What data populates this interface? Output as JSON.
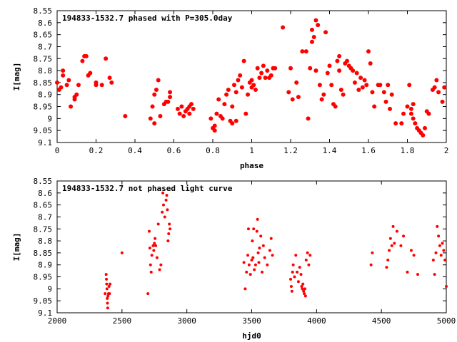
{
  "chart_data": [
    {
      "type": "scatter",
      "title": "194833-1532.7 phased with P=305.0day",
      "xlabel": "phase",
      "ylabel": "I[mag]",
      "xlim": [
        0,
        2
      ],
      "ylim": [
        8.55,
        9.1
      ],
      "y_inverted": true,
      "x_ticks": [
        0,
        0.2,
        0.4,
        0.6,
        0.8,
        1,
        1.2,
        1.4,
        1.6,
        1.8,
        2
      ],
      "x_tick_labels": [
        "0",
        "0.2",
        "0.4",
        "0.6",
        "0.8",
        "1",
        "1.2",
        "1.4",
        "1.6",
        "1.8",
        "2"
      ],
      "y_ticks": [
        8.55,
        8.6,
        8.65,
        8.7,
        8.75,
        8.8,
        8.85,
        8.9,
        8.95,
        9,
        9.05,
        9.1
      ],
      "y_tick_labels": [
        "8.55",
        "8.6",
        "8.65",
        "8.7",
        "8.75",
        "8.8",
        "8.85",
        "8.9",
        "8.95",
        "9",
        "9.05",
        "9.1"
      ],
      "marker_color": "#ff0000",
      "grid": false,
      "points": [
        [
          0.0,
          8.85
        ],
        [
          0.01,
          8.88
        ],
        [
          0.02,
          8.87
        ],
        [
          0.03,
          8.82
        ],
        [
          0.03,
          8.8
        ],
        [
          0.05,
          8.86
        ],
        [
          0.06,
          8.84
        ],
        [
          0.07,
          8.95
        ],
        [
          0.09,
          8.92
        ],
        [
          0.09,
          8.91
        ],
        [
          0.1,
          8.9
        ],
        [
          0.11,
          8.86
        ],
        [
          0.13,
          8.76
        ],
        [
          0.14,
          8.74
        ],
        [
          0.15,
          8.74
        ],
        [
          0.16,
          8.82
        ],
        [
          0.17,
          8.81
        ],
        [
          0.2,
          8.85
        ],
        [
          0.2,
          8.86
        ],
        [
          0.23,
          8.86
        ],
        [
          0.25,
          8.75
        ],
        [
          0.27,
          8.83
        ],
        [
          0.28,
          8.85
        ],
        [
          0.35,
          8.99
        ],
        [
          0.48,
          9.0
        ],
        [
          0.49,
          8.95
        ],
        [
          0.5,
          9.02
        ],
        [
          0.5,
          8.9
        ],
        [
          0.51,
          8.88
        ],
        [
          0.52,
          8.84
        ],
        [
          0.53,
          8.99
        ],
        [
          0.55,
          8.94
        ],
        [
          0.56,
          8.93
        ],
        [
          0.57,
          8.93
        ],
        [
          0.58,
          8.91
        ],
        [
          0.58,
          8.89
        ],
        [
          0.62,
          8.96
        ],
        [
          0.63,
          8.98
        ],
        [
          0.64,
          8.95
        ],
        [
          0.65,
          8.99
        ],
        [
          0.66,
          8.97
        ],
        [
          0.67,
          8.96
        ],
        [
          0.68,
          8.95
        ],
        [
          0.68,
          8.98
        ],
        [
          0.69,
          8.94
        ],
        [
          0.7,
          8.96
        ],
        [
          0.79,
          9.0
        ],
        [
          0.8,
          9.04
        ],
        [
          0.81,
          9.03
        ],
        [
          0.81,
          9.05
        ],
        [
          0.82,
          8.98
        ],
        [
          0.83,
          8.92
        ],
        [
          0.84,
          8.99
        ],
        [
          0.85,
          9.0
        ],
        [
          0.86,
          8.94
        ],
        [
          0.87,
          8.9
        ],
        [
          0.88,
          8.88
        ],
        [
          0.89,
          9.01
        ],
        [
          0.9,
          9.02
        ],
        [
          0.9,
          8.95
        ],
        [
          0.91,
          8.86
        ],
        [
          0.92,
          8.89
        ],
        [
          0.92,
          9.01
        ],
        [
          0.93,
          8.84
        ],
        [
          0.94,
          8.82
        ],
        [
          0.95,
          8.87
        ],
        [
          0.96,
          8.76
        ],
        [
          0.97,
          8.98
        ],
        [
          0.98,
          8.9
        ],
        [
          0.99,
          8.85
        ],
        [
          1.0,
          8.84
        ],
        [
          1.0,
          8.87
        ],
        [
          1.01,
          8.86
        ],
        [
          1.02,
          8.88
        ],
        [
          1.03,
          8.79
        ],
        [
          1.04,
          8.83
        ],
        [
          1.05,
          8.81
        ],
        [
          1.06,
          8.78
        ],
        [
          1.07,
          8.83
        ],
        [
          1.08,
          8.8
        ],
        [
          1.09,
          8.83
        ],
        [
          1.1,
          8.82
        ],
        [
          1.11,
          8.79
        ],
        [
          1.12,
          8.79
        ],
        [
          1.16,
          8.62
        ],
        [
          1.19,
          8.89
        ],
        [
          1.2,
          8.79
        ],
        [
          1.21,
          8.92
        ],
        [
          1.23,
          8.85
        ],
        [
          1.24,
          8.91
        ],
        [
          1.26,
          8.72
        ],
        [
          1.28,
          8.72
        ],
        [
          1.29,
          9.0
        ],
        [
          1.3,
          8.79
        ],
        [
          1.31,
          8.63
        ],
        [
          1.31,
          8.68
        ],
        [
          1.32,
          8.66
        ],
        [
          1.33,
          8.59
        ],
        [
          1.33,
          8.8
        ],
        [
          1.34,
          8.61
        ],
        [
          1.35,
          8.86
        ],
        [
          1.36,
          8.92
        ],
        [
          1.37,
          8.9
        ],
        [
          1.38,
          8.64
        ],
        [
          1.39,
          8.81
        ],
        [
          1.4,
          8.78
        ],
        [
          1.41,
          8.86
        ],
        [
          1.42,
          8.94
        ],
        [
          1.43,
          8.95
        ],
        [
          1.44,
          8.76
        ],
        [
          1.45,
          8.74
        ],
        [
          1.45,
          8.8
        ],
        [
          1.46,
          8.88
        ],
        [
          1.47,
          8.9
        ],
        [
          1.48,
          8.77
        ],
        [
          1.49,
          8.76
        ],
        [
          1.5,
          8.78
        ],
        [
          1.51,
          8.79
        ],
        [
          1.52,
          8.8
        ],
        [
          1.53,
          8.85
        ],
        [
          1.54,
          8.81
        ],
        [
          1.55,
          8.88
        ],
        [
          1.56,
          8.83
        ],
        [
          1.57,
          8.87
        ],
        [
          1.58,
          8.84
        ],
        [
          1.59,
          8.86
        ],
        [
          1.6,
          8.72
        ],
        [
          1.61,
          8.77
        ],
        [
          1.62,
          8.89
        ],
        [
          1.63,
          8.95
        ],
        [
          1.65,
          8.86
        ],
        [
          1.66,
          8.86
        ],
        [
          1.68,
          8.89
        ],
        [
          1.69,
          8.93
        ],
        [
          1.7,
          8.86
        ],
        [
          1.71,
          8.96
        ],
        [
          1.72,
          8.9
        ],
        [
          1.74,
          9.02
        ],
        [
          1.77,
          9.02
        ],
        [
          1.78,
          8.98
        ],
        [
          1.8,
          8.95
        ],
        [
          1.81,
          8.86
        ],
        [
          1.82,
          8.96
        ],
        [
          1.82,
          8.98
        ],
        [
          1.83,
          9.0
        ],
        [
          1.83,
          8.94
        ],
        [
          1.84,
          9.02
        ],
        [
          1.85,
          9.04
        ],
        [
          1.86,
          9.05
        ],
        [
          1.87,
          9.06
        ],
        [
          1.88,
          9.07
        ],
        [
          1.89,
          9.04
        ],
        [
          1.9,
          8.97
        ],
        [
          1.91,
          8.98
        ],
        [
          1.93,
          8.88
        ],
        [
          1.94,
          8.87
        ],
        [
          1.95,
          8.84
        ],
        [
          1.96,
          8.89
        ],
        [
          1.98,
          8.93
        ],
        [
          1.99,
          8.87
        ]
      ]
    },
    {
      "type": "scatter",
      "title": "194833-1532.7 not phased light curve",
      "xlabel": "hjd0",
      "ylabel": "I[mag]",
      "xlim": [
        2000,
        5000
      ],
      "ylim": [
        8.55,
        9.1
      ],
      "y_inverted": true,
      "x_ticks": [
        2000,
        2500,
        3000,
        3500,
        4000,
        4500,
        5000
      ],
      "x_tick_labels": [
        "2000",
        "2500",
        "3000",
        "3500",
        "4000",
        "4500",
        "5000"
      ],
      "y_ticks": [
        8.55,
        8.6,
        8.65,
        8.7,
        8.75,
        8.8,
        8.85,
        8.9,
        8.95,
        9,
        9.05,
        9.1
      ],
      "y_tick_labels": [
        "8.55",
        "8.6",
        "8.65",
        "8.7",
        "8.75",
        "8.8",
        "8.85",
        "8.9",
        "8.95",
        "9",
        "9.05",
        "9.1"
      ],
      "marker_color": "#ff0000",
      "grid": false,
      "points": [
        [
          2370,
          9.02
        ],
        [
          2378,
          8.94
        ],
        [
          2380,
          8.96
        ],
        [
          2382,
          8.98
        ],
        [
          2384,
          9.0
        ],
        [
          2386,
          9.04
        ],
        [
          2388,
          9.06
        ],
        [
          2390,
          9.08
        ],
        [
          2392,
          9.03
        ],
        [
          2396,
          9.02
        ],
        [
          2400,
          8.99
        ],
        [
          2404,
          9.02
        ],
        [
          2408,
          8.98
        ],
        [
          2500,
          8.85
        ],
        [
          2700,
          9.02
        ],
        [
          2710,
          8.76
        ],
        [
          2715,
          8.83
        ],
        [
          2720,
          8.9
        ],
        [
          2725,
          8.93
        ],
        [
          2730,
          8.86
        ],
        [
          2740,
          8.82
        ],
        [
          2745,
          8.84
        ],
        [
          2750,
          8.81
        ],
        [
          2755,
          8.79
        ],
        [
          2760,
          8.82
        ],
        [
          2770,
          8.87
        ],
        [
          2780,
          8.73
        ],
        [
          2790,
          8.92
        ],
        [
          2800,
          8.9
        ],
        [
          2810,
          8.68
        ],
        [
          2815,
          8.6
        ],
        [
          2820,
          8.65
        ],
        [
          2830,
          8.7
        ],
        [
          2840,
          8.63
        ],
        [
          2845,
          8.61
        ],
        [
          2850,
          8.67
        ],
        [
          2855,
          8.8
        ],
        [
          2860,
          8.77
        ],
        [
          2865,
          8.73
        ],
        [
          2870,
          8.75
        ],
        [
          3440,
          8.89
        ],
        [
          3450,
          9.0
        ],
        [
          3460,
          8.93
        ],
        [
          3470,
          8.86
        ],
        [
          3475,
          8.75
        ],
        [
          3480,
          8.9
        ],
        [
          3490,
          8.94
        ],
        [
          3500,
          8.88
        ],
        [
          3505,
          8.8
        ],
        [
          3510,
          8.87
        ],
        [
          3515,
          8.75
        ],
        [
          3520,
          8.92
        ],
        [
          3530,
          8.9
        ],
        [
          3540,
          8.76
        ],
        [
          3545,
          8.71
        ],
        [
          3550,
          8.85
        ],
        [
          3555,
          8.89
        ],
        [
          3560,
          8.83
        ],
        [
          3570,
          8.78
        ],
        [
          3580,
          8.93
        ],
        [
          3590,
          8.82
        ],
        [
          3600,
          8.87
        ],
        [
          3620,
          8.9
        ],
        [
          3640,
          8.84
        ],
        [
          3650,
          8.79
        ],
        [
          3660,
          8.86
        ],
        [
          3800,
          8.96
        ],
        [
          3805,
          8.99
        ],
        [
          3810,
          9.01
        ],
        [
          3815,
          8.93
        ],
        [
          3820,
          8.9
        ],
        [
          3830,
          8.95
        ],
        [
          3840,
          8.86
        ],
        [
          3850,
          8.93
        ],
        [
          3860,
          8.97
        ],
        [
          3870,
          8.91
        ],
        [
          3880,
          8.94
        ],
        [
          3885,
          8.99
        ],
        [
          3890,
          9.0
        ],
        [
          3895,
          8.98
        ],
        [
          3900,
          9.01
        ],
        [
          3905,
          9.02
        ],
        [
          3910,
          9.0
        ],
        [
          3915,
          9.03
        ],
        [
          3920,
          8.88
        ],
        [
          3930,
          8.85
        ],
        [
          3940,
          8.9
        ],
        [
          3950,
          8.86
        ],
        [
          4420,
          8.9
        ],
        [
          4430,
          8.85
        ],
        [
          4540,
          8.91
        ],
        [
          4550,
          8.88
        ],
        [
          4560,
          8.84
        ],
        [
          4570,
          8.79
        ],
        [
          4580,
          8.82
        ],
        [
          4590,
          8.74
        ],
        [
          4600,
          8.81
        ],
        [
          4620,
          8.76
        ],
        [
          4650,
          8.82
        ],
        [
          4670,
          8.78
        ],
        [
          4700,
          8.93
        ],
        [
          4730,
          8.84
        ],
        [
          4750,
          8.86
        ],
        [
          4780,
          8.94
        ],
        [
          4900,
          8.88
        ],
        [
          4910,
          8.94
        ],
        [
          4920,
          8.85
        ],
        [
          4930,
          8.74
        ],
        [
          4940,
          8.78
        ],
        [
          4950,
          8.82
        ],
        [
          4960,
          8.86
        ],
        [
          4970,
          8.81
        ],
        [
          4980,
          8.84
        ],
        [
          4990,
          8.88
        ],
        [
          5000,
          8.99
        ]
      ]
    }
  ]
}
